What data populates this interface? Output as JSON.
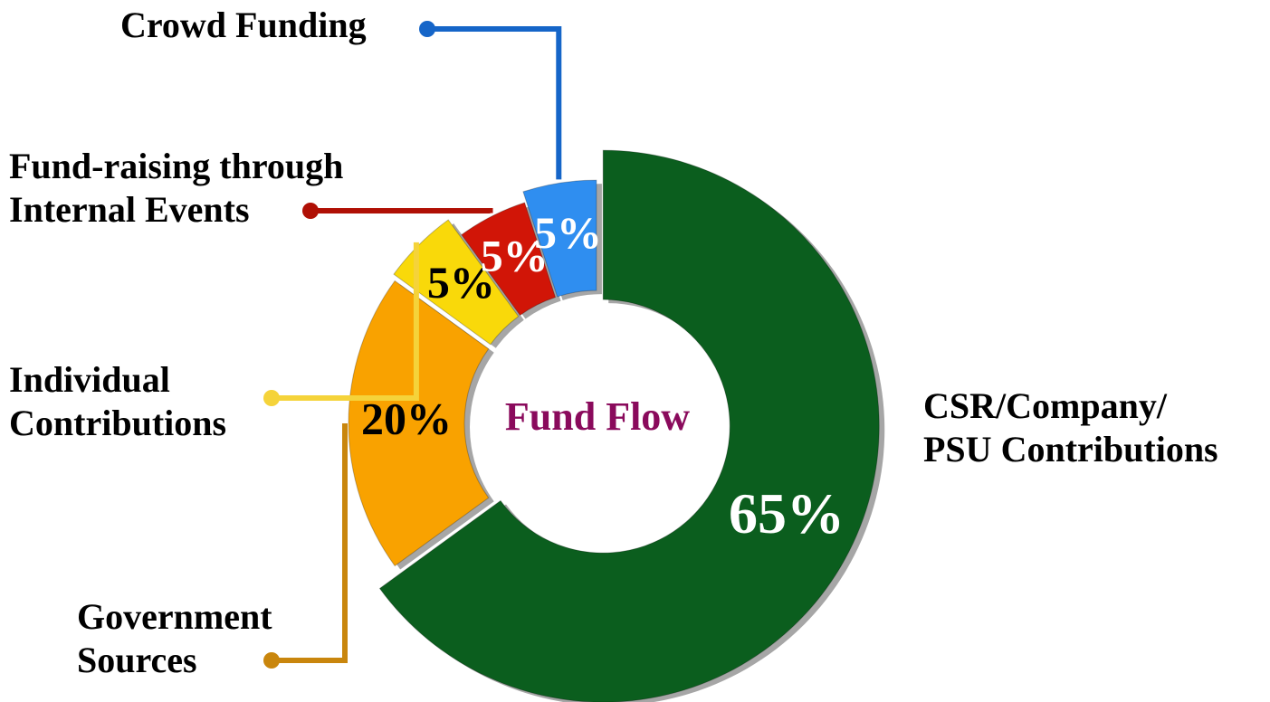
{
  "chart_data": {
    "type": "donut",
    "center_label": "Fund Flow",
    "categories": [
      "CSR/Company/\nPSU Contributions",
      "Government\nSources",
      "Individual\nContributions",
      "Fund-raising through\nInternal Events",
      "Crowd Funding"
    ],
    "values": [
      65,
      20,
      5,
      5,
      5
    ],
    "value_labels": [
      "65%",
      "20%",
      "5%",
      "5%",
      "5%"
    ],
    "colors": [
      "#0b5e1e",
      "#f9a200",
      "#f9d90a",
      "#d11507",
      "#2f8ef0"
    ],
    "value_label_colors": [
      "#ffffff",
      "#000000",
      "#000000",
      "#ffffff",
      "#ffffff"
    ],
    "connector_colors": [
      null,
      "#c9860d",
      "#f5d33a",
      "#b01005",
      "#1565c8"
    ]
  }
}
